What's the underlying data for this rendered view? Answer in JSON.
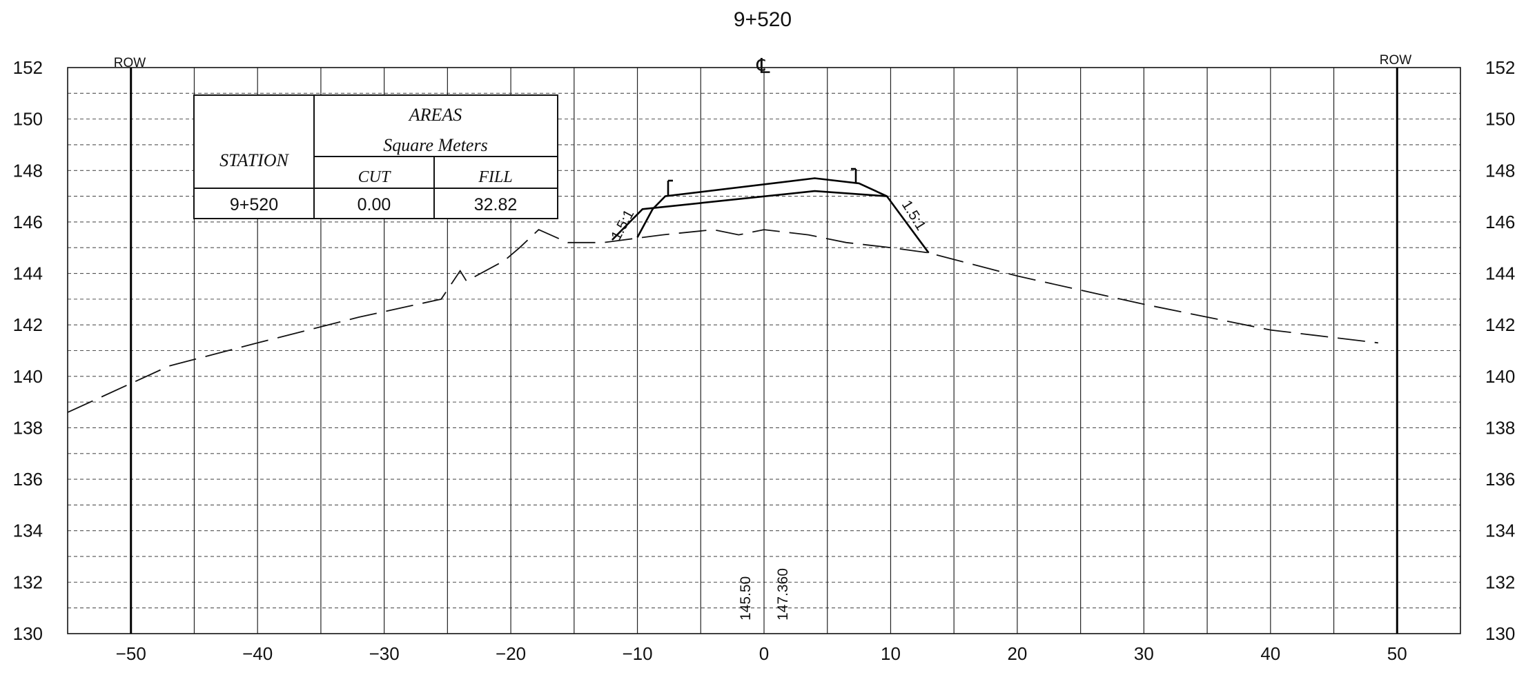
{
  "title": "9+520",
  "centerline_symbol": "℄",
  "row_label_left": "ROW",
  "row_label_right": "ROW",
  "areas_table": {
    "station_header": "STATION",
    "areas_header": "AREAS",
    "units_header": "Square Meters",
    "cut_header": "CUT",
    "fill_header": "FILL",
    "station": "9+520",
    "cut": "0.00",
    "fill": "32.82"
  },
  "slope_left": "1.5:1",
  "slope_right": "1.5:1",
  "ground_elevation_label": "145.50",
  "design_elevation_label": "147.360",
  "colors": {
    "ink": "#111111",
    "paper": "#ffffff"
  },
  "chart_data": {
    "type": "line",
    "title": "9+520",
    "xlabel": "",
    "ylabel": "",
    "xlim": [
      -55,
      55
    ],
    "ylim": [
      130,
      152
    ],
    "x_ticks": [
      -50,
      -40,
      -30,
      -20,
      -10,
      0,
      10,
      20,
      30,
      40,
      50
    ],
    "x_tick_labels": [
      "−50",
      "−40",
      "−30",
      "−20",
      "−10",
      "0",
      "10",
      "20",
      "30",
      "40",
      "50"
    ],
    "y_ticks": [
      130,
      132,
      134,
      136,
      138,
      140,
      142,
      144,
      146,
      148,
      150,
      152
    ],
    "y_tick_labels": [
      "130",
      "132",
      "134",
      "136",
      "138",
      "140",
      "142",
      "144",
      "146",
      "148",
      "150",
      "152"
    ],
    "grid": true,
    "row_offsets": [
      -50,
      50
    ],
    "series": [
      {
        "points": [
          [
            -55,
            138.6
          ],
          [
            -47,
            140.4
          ],
          [
            -40,
            141.3
          ],
          [
            -32,
            142.3
          ],
          [
            -25.5,
            143.0
          ],
          [
            -24,
            144.1
          ],
          [
            -23.5,
            143.7
          ],
          [
            -20.5,
            144.5
          ],
          [
            -19.3,
            145.0
          ],
          [
            -17.8,
            145.7
          ],
          [
            -15.5,
            145.2
          ],
          [
            -12.7,
            145.2
          ],
          [
            -8,
            145.5
          ],
          [
            -4,
            145.7
          ],
          [
            -2,
            145.5
          ],
          [
            0,
            145.7
          ],
          [
            3.5,
            145.5
          ],
          [
            6.5,
            145.2
          ],
          [
            10,
            145.0
          ],
          [
            13,
            144.8
          ],
          [
            20,
            143.9
          ],
          [
            30,
            142.8
          ],
          [
            40,
            141.8
          ],
          [
            48.5,
            141.3
          ]
        ]
      },
      {
        "points": [
          [
            -10,
            145.4
          ],
          [
            -8.8,
            146.5
          ],
          [
            -7.8,
            147.0
          ],
          [
            4,
            147.7
          ],
          [
            7.5,
            147.5
          ],
          [
            9.7,
            147.0
          ],
          [
            13,
            144.8
          ]
        ]
      },
      {
        "points": [
          [
            -12,
            145.3
          ],
          [
            -9.6,
            146.5
          ],
          [
            4,
            147.2
          ],
          [
            9.7,
            147.0
          ]
        ]
      }
    ]
  }
}
